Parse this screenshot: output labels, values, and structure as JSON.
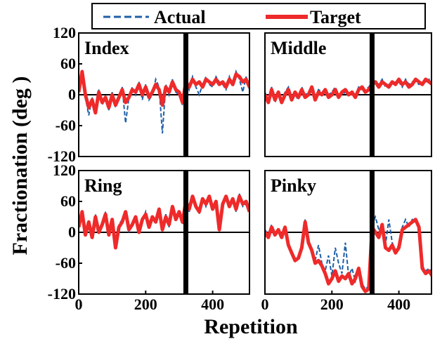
{
  "chart_data": {
    "type": "line",
    "xlabel": "Repetition",
    "ylabel": "Fractionation (deg )",
    "xlim": [
      0,
      510
    ],
    "ylim": [
      -120,
      120
    ],
    "x_ticks": [
      0,
      200,
      400
    ],
    "y_ticks": [
      120,
      60,
      0,
      -60,
      -120
    ],
    "x_tick_labels": [
      "0",
      "200",
      "400"
    ],
    "y_tick_labels": [
      "120",
      "60",
      "0",
      "-60",
      "-120"
    ],
    "divider_x": 320,
    "zero_line": true,
    "legend": {
      "position": "top",
      "entries": [
        {
          "label": "Actual",
          "color": "#1f5fa8",
          "style": "dashed"
        },
        {
          "label": "Target",
          "color": "#ee2a2a",
          "style": "solid"
        }
      ]
    },
    "series": [
      {
        "name": "Index",
        "x": [
          0,
          10,
          20,
          30,
          40,
          50,
          60,
          70,
          80,
          90,
          100,
          110,
          120,
          130,
          140,
          150,
          160,
          170,
          180,
          190,
          200,
          210,
          220,
          230,
          240,
          250,
          260,
          270,
          280,
          290,
          300,
          310,
          320,
          330,
          340,
          350,
          360,
          370,
          380,
          390,
          400,
          410,
          420,
          430,
          440,
          450,
          460,
          470,
          480,
          490,
          500,
          510
        ],
        "target": [
          5,
          45,
          0,
          -25,
          -10,
          -35,
          5,
          -15,
          -5,
          -25,
          0,
          -20,
          -5,
          10,
          -15,
          -5,
          10,
          5,
          20,
          0,
          15,
          -5,
          5,
          20,
          10,
          -20,
          15,
          5,
          25,
          10,
          5,
          -15,
          25,
          15,
          30,
          20,
          25,
          15,
          30,
          25,
          20,
          30,
          20,
          25,
          15,
          30,
          20,
          40,
          35,
          25,
          30,
          15
        ],
        "actual": [
          10,
          40,
          -5,
          -40,
          -5,
          -30,
          10,
          -20,
          -5,
          -30,
          5,
          -25,
          -10,
          15,
          -55,
          -5,
          15,
          0,
          25,
          -10,
          20,
          -10,
          0,
          30,
          15,
          -75,
          20,
          0,
          30,
          5,
          0,
          -20,
          30,
          10,
          35,
          15,
          0,
          20,
          35,
          20,
          15,
          35,
          25,
          20,
          10,
          35,
          15,
          45,
          30,
          5,
          35,
          10
        ]
      },
      {
        "name": "Middle",
        "x": [
          0,
          10,
          20,
          30,
          40,
          50,
          60,
          70,
          80,
          90,
          100,
          110,
          120,
          130,
          140,
          150,
          160,
          170,
          180,
          190,
          200,
          210,
          220,
          230,
          240,
          250,
          260,
          270,
          280,
          290,
          300,
          310,
          320,
          330,
          340,
          350,
          360,
          370,
          380,
          390,
          400,
          410,
          420,
          430,
          440,
          450,
          460,
          470,
          480,
          490,
          500,
          510
        ],
        "target": [
          0,
          -15,
          10,
          -10,
          5,
          -15,
          0,
          10,
          -10,
          5,
          -5,
          10,
          -5,
          0,
          15,
          -10,
          5,
          0,
          10,
          -5,
          0,
          10,
          -5,
          5,
          10,
          0,
          5,
          -5,
          10,
          15,
          5,
          10,
          20,
          25,
          15,
          25,
          20,
          15,
          25,
          20,
          30,
          20,
          25,
          15,
          20,
          30,
          25,
          20,
          30,
          25,
          20,
          25
        ],
        "actual": [
          5,
          -10,
          15,
          -15,
          0,
          -10,
          5,
          15,
          -5,
          0,
          -10,
          15,
          0,
          5,
          10,
          -5,
          10,
          5,
          5,
          0,
          5,
          15,
          0,
          0,
          5,
          5,
          0,
          0,
          15,
          10,
          10,
          15,
          25,
          20,
          20,
          30,
          15,
          20,
          20,
          25,
          25,
          15,
          30,
          20,
          25,
          25,
          20,
          25,
          25,
          30,
          15,
          30
        ]
      },
      {
        "name": "Ring",
        "x": [
          0,
          10,
          20,
          30,
          40,
          50,
          60,
          70,
          80,
          90,
          100,
          110,
          120,
          130,
          140,
          150,
          160,
          170,
          180,
          190,
          200,
          210,
          220,
          230,
          240,
          250,
          260,
          270,
          280,
          290,
          300,
          310,
          320,
          330,
          340,
          350,
          360,
          370,
          380,
          390,
          400,
          410,
          420,
          430,
          440,
          450,
          460,
          470,
          480,
          490,
          500,
          510
        ],
        "target": [
          10,
          40,
          -5,
          20,
          -10,
          30,
          0,
          15,
          35,
          -5,
          25,
          -30,
          10,
          20,
          40,
          5,
          15,
          30,
          0,
          25,
          35,
          10,
          30,
          20,
          45,
          5,
          30,
          15,
          50,
          25,
          40,
          20,
          60,
          45,
          70,
          50,
          40,
          65,
          55,
          70,
          45,
          60,
          5,
          55,
          70,
          50,
          65,
          45,
          70,
          55,
          60,
          40
        ],
        "actual": [
          15,
          35,
          0,
          15,
          -5,
          35,
          5,
          10,
          40,
          0,
          20,
          -25,
          15,
          25,
          35,
          0,
          20,
          25,
          5,
          20,
          40,
          15,
          25,
          25,
          40,
          10,
          35,
          10,
          45,
          30,
          35,
          15,
          65,
          40,
          65,
          55,
          35,
          70,
          50,
          65,
          50,
          55,
          10,
          50,
          65,
          55,
          60,
          40,
          75,
          50,
          55,
          45
        ]
      },
      {
        "name": "Pinky",
        "x": [
          0,
          10,
          20,
          30,
          40,
          50,
          60,
          70,
          80,
          90,
          100,
          110,
          120,
          130,
          140,
          150,
          160,
          170,
          180,
          190,
          200,
          210,
          220,
          230,
          240,
          250,
          260,
          270,
          280,
          290,
          300,
          310,
          320,
          330,
          340,
          350,
          360,
          370,
          380,
          390,
          400,
          410,
          420,
          430,
          440,
          450,
          460,
          470,
          480,
          490,
          500,
          510
        ],
        "target": [
          0,
          -10,
          10,
          -5,
          5,
          -10,
          10,
          -25,
          -40,
          -55,
          -50,
          -30,
          20,
          -20,
          -35,
          -60,
          -55,
          -65,
          -80,
          -100,
          -90,
          -75,
          -95,
          -85,
          -90,
          -80,
          -100,
          -90,
          -70,
          -105,
          -115,
          -110,
          10,
          0,
          -10,
          15,
          -30,
          -35,
          -25,
          -40,
          -30,
          5,
          10,
          15,
          20,
          25,
          10,
          -70,
          -80,
          -75,
          -85,
          -80
        ],
        "actual": [
          5,
          -5,
          15,
          0,
          0,
          -5,
          5,
          -20,
          -45,
          -50,
          -55,
          -25,
          25,
          -15,
          -30,
          -55,
          -25,
          -60,
          -75,
          -45,
          -85,
          -30,
          -60,
          -80,
          -20,
          -85,
          -70,
          -95,
          -75,
          -100,
          -110,
          -105,
          15,
          30,
          5,
          10,
          -25,
          25,
          -20,
          -35,
          -25,
          10,
          25,
          10,
          25,
          20,
          15,
          -65,
          -75,
          -70,
          -80,
          -75
        ]
      }
    ]
  }
}
